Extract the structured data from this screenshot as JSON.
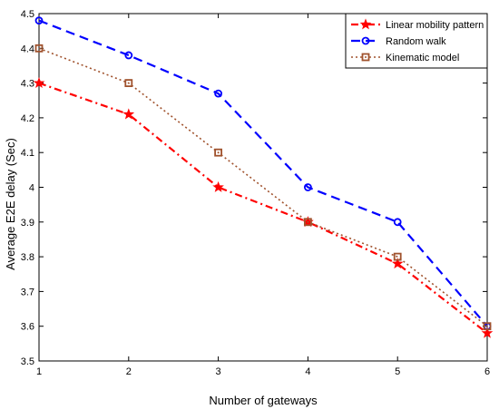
{
  "chart_data": {
    "type": "line",
    "xlabel": "Number of gateways",
    "ylabel": "Average E2E delay (Sec)",
    "x": [
      1,
      2,
      3,
      4,
      5,
      6
    ],
    "xlim": [
      1,
      6
    ],
    "ylim": [
      3.5,
      4.5
    ],
    "xticks": [
      "1",
      "2",
      "3",
      "4",
      "5",
      "6"
    ],
    "yticks": [
      "3.5",
      "3.6",
      "3.7",
      "3.8",
      "3.9",
      "4",
      "4.1",
      "4.2",
      "4.3",
      "4.4",
      "4.5"
    ],
    "grid": false,
    "legend_position": "top-right",
    "series": [
      {
        "name": "Linear mobility pattern",
        "values": [
          4.3,
          4.21,
          4.0,
          3.9,
          3.78,
          3.58
        ],
        "color": "#ff0000",
        "line_style": "dash-dot",
        "marker": "star"
      },
      {
        "name": "Random walk",
        "values": [
          4.48,
          4.38,
          4.27,
          4.0,
          3.9,
          3.6
        ],
        "color": "#0000ff",
        "line_style": "dashed",
        "marker": "circle"
      },
      {
        "name": "Kinematic model",
        "values": [
          4.4,
          4.3,
          4.1,
          3.9,
          3.8,
          3.6
        ],
        "color": "#a0522d",
        "line_style": "dotted",
        "marker": "square"
      }
    ]
  }
}
